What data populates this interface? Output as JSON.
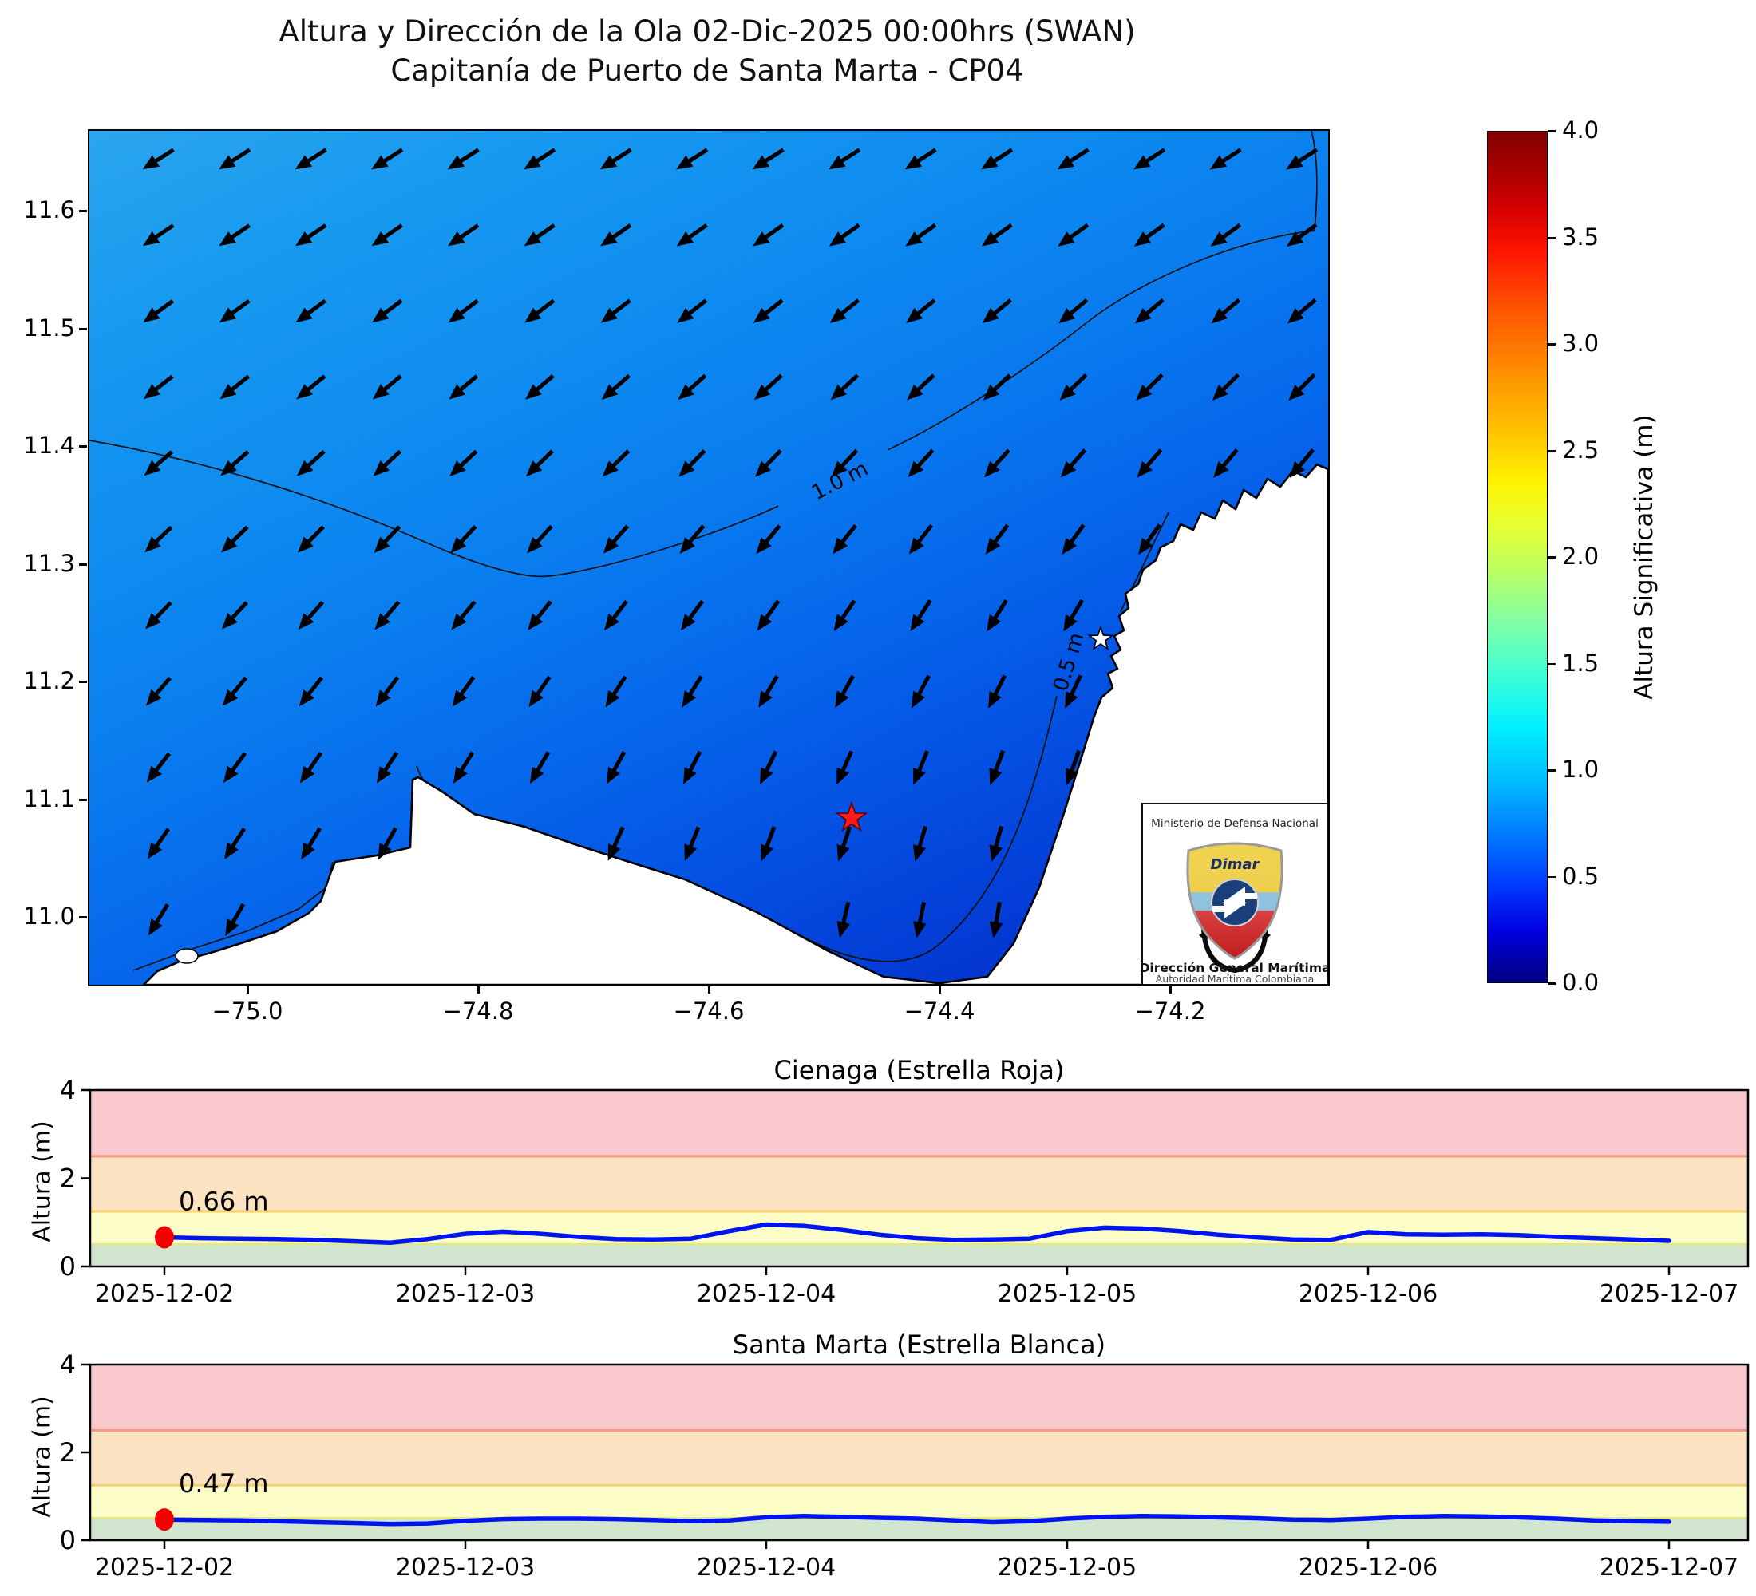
{
  "header": {
    "title_line1": "Altura y Dirección de la Ola 02-Dic-2025 00:00hrs (SWAN)",
    "title_line2": "Capitanía de Puerto de Santa Marta - CP04"
  },
  "map": {
    "x_tick_labels": [
      "−75.0",
      "−74.8",
      "−74.6",
      "−74.4",
      "−74.2"
    ],
    "y_tick_labels": [
      "11.6",
      "11.5",
      "11.4",
      "11.3",
      "11.2",
      "11.1",
      "11.0"
    ],
    "contour_labels": {
      "c10": "1.0 m",
      "c05": "0.5 m"
    },
    "markers": [
      {
        "name": "Cienaga",
        "symbol": "red-star"
      },
      {
        "name": "Santa Marta",
        "symbol": "white-star"
      }
    ],
    "logo": {
      "ministry": "Ministerio de Defensa Nacional",
      "brand": "Dimar",
      "org": "Dirección General Marítima",
      "sub": "Autoridad Marítima Colombiana"
    }
  },
  "colorbar": {
    "label": "Altura Significativa (m)",
    "tick_labels": [
      "4.0",
      "3.5",
      "3.0",
      "2.5",
      "2.0",
      "1.5",
      "1.0",
      "0.5",
      "0.0"
    ],
    "min": 0,
    "max": 4,
    "colormap": "jet"
  },
  "plots": [
    {
      "title": "Cienaga (Estrella Roja)",
      "ylabel": "Altura (m)",
      "y_tick_labels": [
        "4",
        "2",
        "0"
      ],
      "x_tick_labels": [
        "2025-12-02",
        "2025-12-03",
        "2025-12-04",
        "2025-12-05",
        "2025-12-06",
        "2025-12-07"
      ],
      "annotation": "0.66 m"
    },
    {
      "title": "Santa Marta (Estrella Blanca)",
      "ylabel": "Altura (m)",
      "y_tick_labels": [
        "4",
        "2",
        "0"
      ],
      "x_tick_labels": [
        "2025-12-02",
        "2025-12-03",
        "2025-12-04",
        "2025-12-05",
        "2025-12-06",
        "2025-12-07"
      ],
      "annotation": "0.47 m"
    }
  ],
  "chart_data": [
    {
      "type": "heatmap",
      "name": "wave-height-direction-map",
      "title": "Altura y Dirección de la Ola 02-Dic-2025 00:00hrs (SWAN)",
      "subtitle": "Capitanía de Puerto de Santa Marta - CP04",
      "x_ticks": [
        -75.0,
        -74.8,
        -74.6,
        -74.4,
        -74.2
      ],
      "y_ticks": [
        11.6,
        11.5,
        11.4,
        11.3,
        11.2,
        11.1,
        11.0
      ],
      "colorbar": {
        "label": "Altura Significativa (m)",
        "min": 0.0,
        "max": 4.0,
        "tick_step": 0.5,
        "colormap": "jet"
      },
      "contour_levels_m": [
        0.5,
        1.0
      ],
      "wave_direction": "arrows point toward the southwest, turning southward near the coast",
      "field_range_m": [
        0.3,
        1.2
      ],
      "markers": [
        {
          "name": "Cienaga",
          "symbol": "red-star"
        },
        {
          "name": "Santa Marta",
          "symbol": "white-star"
        }
      ]
    },
    {
      "type": "line",
      "title": "Cienaga (Estrella Roja)",
      "ylabel": "Altura (m)",
      "ylim": [
        0,
        4
      ],
      "x_start": "2025-12-02 00:00",
      "step_hours": 3,
      "x_tick_labels": [
        "2025-12-02",
        "2025-12-03",
        "2025-12-04",
        "2025-12-05",
        "2025-12-06",
        "2025-12-07"
      ],
      "first_point_label": "0.66 m",
      "bands": [
        {
          "range": [
            0,
            0.5
          ],
          "color": "green"
        },
        {
          "range": [
            0.5,
            1.25
          ],
          "color": "yellow"
        },
        {
          "range": [
            1.25,
            2.5
          ],
          "color": "orange"
        },
        {
          "range": [
            2.5,
            4
          ],
          "color": "red"
        }
      ],
      "values": [
        0.66,
        0.64,
        0.63,
        0.62,
        0.6,
        0.57,
        0.54,
        0.62,
        0.74,
        0.79,
        0.74,
        0.67,
        0.62,
        0.61,
        0.63,
        0.8,
        0.95,
        0.92,
        0.83,
        0.72,
        0.64,
        0.6,
        0.61,
        0.63,
        0.8,
        0.88,
        0.86,
        0.8,
        0.72,
        0.66,
        0.61,
        0.6,
        0.78,
        0.73,
        0.72,
        0.73,
        0.71,
        0.67,
        0.64,
        0.61,
        0.58
      ]
    },
    {
      "type": "line",
      "title": "Santa Marta (Estrella Blanca)",
      "ylabel": "Altura (m)",
      "ylim": [
        0,
        4
      ],
      "x_start": "2025-12-02 00:00",
      "step_hours": 3,
      "x_tick_labels": [
        "2025-12-02",
        "2025-12-03",
        "2025-12-04",
        "2025-12-05",
        "2025-12-06",
        "2025-12-07"
      ],
      "first_point_label": "0.47 m",
      "bands": [
        {
          "range": [
            0,
            0.5
          ],
          "color": "green"
        },
        {
          "range": [
            0.5,
            1.25
          ],
          "color": "yellow"
        },
        {
          "range": [
            1.25,
            2.5
          ],
          "color": "orange"
        },
        {
          "range": [
            2.5,
            4
          ],
          "color": "red"
        }
      ],
      "values": [
        0.47,
        0.46,
        0.45,
        0.43,
        0.41,
        0.39,
        0.37,
        0.38,
        0.44,
        0.48,
        0.49,
        0.49,
        0.48,
        0.46,
        0.43,
        0.45,
        0.52,
        0.55,
        0.53,
        0.51,
        0.49,
        0.45,
        0.41,
        0.43,
        0.49,
        0.53,
        0.55,
        0.54,
        0.52,
        0.5,
        0.47,
        0.46,
        0.49,
        0.53,
        0.55,
        0.54,
        0.52,
        0.49,
        0.45,
        0.43,
        0.42
      ]
    }
  ]
}
